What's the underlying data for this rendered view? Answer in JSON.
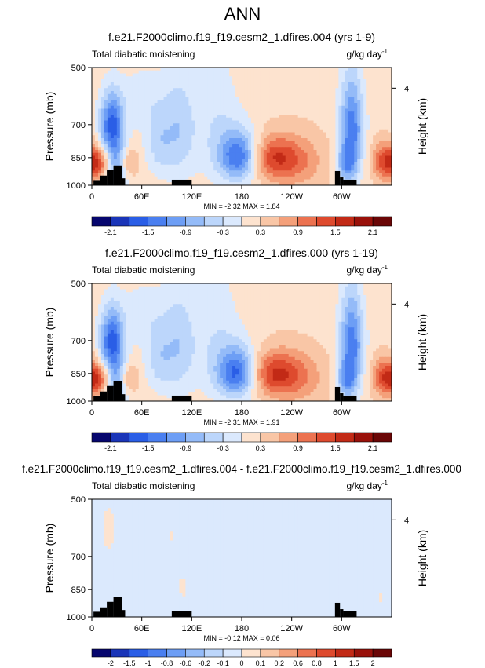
{
  "page_title": "ANN",
  "panels": [
    {
      "title": "f.e21.F2000climo.f19_f19.cesm2_1.dfires.004 (yrs 1-9)",
      "left_label": "Total diabatic moistening",
      "right_label": "g/kg day",
      "right_label_exp": "-1",
      "stats": "MIN = -2.32  MAX = 1.84",
      "colorbar_ticks": [
        "-2.1",
        "-1.5",
        "-0.9",
        "-0.3",
        "0.3",
        "0.9",
        "1.5",
        "2.1"
      ]
    },
    {
      "title": "f.e21.F2000climo.f19_f19.cesm2_1.dfires.000 (yrs 1-19)",
      "left_label": "Total diabatic moistening",
      "right_label": "g/kg day",
      "right_label_exp": "-1",
      "stats": "MIN = -2.31  MAX = 1.91",
      "colorbar_ticks": [
        "-2.1",
        "-1.5",
        "-0.9",
        "-0.3",
        "0.3",
        "0.9",
        "1.5",
        "2.1"
      ]
    },
    {
      "title": "f.e21.F2000climo.f19_f19.cesm2_1.dfires.004 - f.e21.F2000climo.f19_f19.cesm2_1.dfires.000",
      "left_label": "Total diabatic moistening",
      "right_label": "g/kg day",
      "right_label_exp": "-1",
      "stats": "MIN = -0.12  MAX = 0.06",
      "colorbar_ticks": [
        "-2",
        "-1.5",
        "-1",
        "-0.8",
        "-0.6",
        "-0.2",
        "-0.1",
        "0",
        "0.1",
        "0.2",
        "0.6",
        "0.8",
        "1",
        "1.5",
        "2"
      ]
    }
  ],
  "chart_data": [
    {
      "type": "heatmap",
      "title": "f.e21.F2000climo.f19_f19.cesm2_1.dfires.004 (yrs 1-9)",
      "xlabel": "",
      "ylabel": "Pressure (mb)",
      "y2label": "Height (km)",
      "x_ticks": [
        "0",
        "60E",
        "120E",
        "180",
        "120W",
        "60W"
      ],
      "x_tick_lon": [
        0,
        60,
        120,
        180,
        240,
        300
      ],
      "xlim": [
        0,
        360
      ],
      "y_ticks": [
        "500",
        "700",
        "850",
        "1000"
      ],
      "y_tick_values": [
        500,
        700,
        850,
        1000
      ],
      "ylim": [
        1000,
        500
      ],
      "y2_ticks": [
        "4"
      ],
      "y2_tick_values": [
        4
      ],
      "levels": [
        -2.1,
        -1.8,
        -1.5,
        -1.2,
        -0.9,
        -0.6,
        -0.3,
        0,
        0.3,
        0.6,
        0.9,
        1.2,
        1.5,
        1.8,
        2.1
      ],
      "colors": [
        "#06066e",
        "#1a35b8",
        "#2a5ee6",
        "#4a7ff0",
        "#6d9ef5",
        "#94bbf8",
        "#bcd6fb",
        "#dbe9fd",
        "#fde3cf",
        "#f9c6a6",
        "#f4a07a",
        "#ec7250",
        "#de4a2e",
        "#c22a16",
        "#99110a",
        "#6a0606"
      ],
      "min": -2.32,
      "max": 1.84,
      "features": [
        {
          "lon": 24,
          "p": 700,
          "amp": -1.8,
          "dlon": 10,
          "dp": 90
        },
        {
          "lon": 30,
          "p": 900,
          "amp": -1.2,
          "dlon": 12,
          "dp": 90
        },
        {
          "lon": 10,
          "p": 880,
          "amp": 1.2,
          "dlon": 10,
          "dp": 60
        },
        {
          "lon": 44,
          "p": 880,
          "amp": 0.9,
          "dlon": 8,
          "dp": 60
        },
        {
          "lon": 80,
          "p": 780,
          "amp": -0.6,
          "dlon": 12,
          "dp": 110
        },
        {
          "lon": 105,
          "p": 720,
          "amp": -0.7,
          "dlon": 14,
          "dp": 160
        },
        {
          "lon": 150,
          "p": 700,
          "amp": -0.45,
          "dlon": 20,
          "dp": 180
        },
        {
          "lon": 178,
          "p": 845,
          "amp": -1.9,
          "dlon": 17,
          "dp": 85
        },
        {
          "lon": 215,
          "p": 850,
          "amp": 1.1,
          "dlon": 26,
          "dp": 75
        },
        {
          "lon": 245,
          "p": 880,
          "amp": 0.5,
          "dlon": 28,
          "dp": 110
        },
        {
          "lon": 312,
          "p": 720,
          "amp": -1.6,
          "dlon": 10,
          "dp": 150
        },
        {
          "lon": 305,
          "p": 890,
          "amp": -0.9,
          "dlon": 8,
          "dp": 70
        },
        {
          "lon": 352,
          "p": 870,
          "amp": 1.1,
          "dlon": 11,
          "dp": 70
        },
        {
          "lon": 60,
          "p": 600,
          "amp": -0.35,
          "dlon": 20,
          "dp": 80
        }
      ],
      "base": 0.2,
      "terrain": [
        {
          "lon0": 2,
          "lon1": 10,
          "p_top": 970
        },
        {
          "lon0": 10,
          "lon1": 18,
          "p_top": 945
        },
        {
          "lon0": 18,
          "lon1": 26,
          "p_top": 915
        },
        {
          "lon0": 26,
          "lon1": 36,
          "p_top": 890
        },
        {
          "lon0": 36,
          "lon1": 40,
          "p_top": 960
        },
        {
          "lon0": 96,
          "lon1": 120,
          "p_top": 968
        },
        {
          "lon0": 292,
          "lon1": 298,
          "p_top": 920
        },
        {
          "lon0": 298,
          "lon1": 302,
          "p_top": 955
        },
        {
          "lon0": 302,
          "lon1": 318,
          "p_top": 968
        }
      ]
    },
    {
      "type": "heatmap",
      "title": "f.e21.F2000climo.f19_f19.cesm2_1.dfires.000 (yrs 1-19)",
      "xlabel": "",
      "ylabel": "Pressure (mb)",
      "y2label": "Height (km)",
      "x_ticks": [
        "0",
        "60E",
        "120E",
        "180",
        "120W",
        "60W"
      ],
      "x_tick_lon": [
        0,
        60,
        120,
        180,
        240,
        300
      ],
      "xlim": [
        0,
        360
      ],
      "y_ticks": [
        "500",
        "700",
        "850",
        "1000"
      ],
      "y_tick_values": [
        500,
        700,
        850,
        1000
      ],
      "ylim": [
        1000,
        500
      ],
      "y2_ticks": [
        "4"
      ],
      "y2_tick_values": [
        4
      ],
      "levels": [
        -2.1,
        -1.8,
        -1.5,
        -1.2,
        -0.9,
        -0.6,
        -0.3,
        0,
        0.3,
        0.6,
        0.9,
        1.2,
        1.5,
        1.8,
        2.1
      ],
      "colors": [
        "#06066e",
        "#1a35b8",
        "#2a5ee6",
        "#4a7ff0",
        "#6d9ef5",
        "#94bbf8",
        "#bcd6fb",
        "#dbe9fd",
        "#fde3cf",
        "#f9c6a6",
        "#f4a07a",
        "#ec7250",
        "#de4a2e",
        "#c22a16",
        "#99110a",
        "#6a0606"
      ],
      "min": -2.31,
      "max": 1.91,
      "features": [
        {
          "lon": 24,
          "p": 700,
          "amp": -1.8,
          "dlon": 10,
          "dp": 90
        },
        {
          "lon": 30,
          "p": 900,
          "amp": -1.2,
          "dlon": 12,
          "dp": 90
        },
        {
          "lon": 10,
          "p": 880,
          "amp": 1.2,
          "dlon": 10,
          "dp": 60
        },
        {
          "lon": 44,
          "p": 880,
          "amp": 0.9,
          "dlon": 8,
          "dp": 60
        },
        {
          "lon": 80,
          "p": 780,
          "amp": -0.6,
          "dlon": 12,
          "dp": 110
        },
        {
          "lon": 105,
          "p": 720,
          "amp": -0.7,
          "dlon": 14,
          "dp": 160
        },
        {
          "lon": 150,
          "p": 700,
          "amp": -0.45,
          "dlon": 20,
          "dp": 180
        },
        {
          "lon": 176,
          "p": 848,
          "amp": -1.95,
          "dlon": 17,
          "dp": 85
        },
        {
          "lon": 215,
          "p": 850,
          "amp": 1.15,
          "dlon": 26,
          "dp": 75
        },
        {
          "lon": 245,
          "p": 880,
          "amp": 0.5,
          "dlon": 28,
          "dp": 110
        },
        {
          "lon": 312,
          "p": 720,
          "amp": -1.6,
          "dlon": 10,
          "dp": 150
        },
        {
          "lon": 305,
          "p": 890,
          "amp": -0.9,
          "dlon": 8,
          "dp": 70
        },
        {
          "lon": 352,
          "p": 870,
          "amp": 1.15,
          "dlon": 11,
          "dp": 70
        },
        {
          "lon": 60,
          "p": 600,
          "amp": -0.35,
          "dlon": 20,
          "dp": 80
        }
      ],
      "base": 0.2,
      "terrain": [
        {
          "lon0": 2,
          "lon1": 10,
          "p_top": 970
        },
        {
          "lon0": 10,
          "lon1": 18,
          "p_top": 945
        },
        {
          "lon0": 18,
          "lon1": 26,
          "p_top": 915
        },
        {
          "lon0": 26,
          "lon1": 36,
          "p_top": 890
        },
        {
          "lon0": 36,
          "lon1": 40,
          "p_top": 960
        },
        {
          "lon0": 96,
          "lon1": 120,
          "p_top": 968
        },
        {
          "lon0": 292,
          "lon1": 298,
          "p_top": 920
        },
        {
          "lon0": 298,
          "lon1": 302,
          "p_top": 955
        },
        {
          "lon0": 302,
          "lon1": 318,
          "p_top": 968
        }
      ]
    },
    {
      "type": "heatmap",
      "title": "f.e21.F2000climo.f19_f19.cesm2_1.dfires.004 - f.e21.F2000climo.f19_f19.cesm2_1.dfires.000",
      "xlabel": "",
      "ylabel": "Pressure (mb)",
      "y2label": "Height (km)",
      "x_ticks": [
        "0",
        "60E",
        "120E",
        "180",
        "120W",
        "60W"
      ],
      "x_tick_lon": [
        0,
        60,
        120,
        180,
        240,
        300
      ],
      "xlim": [
        0,
        360
      ],
      "y_ticks": [
        "500",
        "700",
        "850",
        "1000"
      ],
      "y_tick_values": [
        500,
        700,
        850,
        1000
      ],
      "ylim": [
        1000,
        500
      ],
      "y2_ticks": [
        "4"
      ],
      "y2_tick_values": [
        4
      ],
      "levels": [
        -2,
        -1.5,
        -1,
        -0.8,
        -0.6,
        -0.2,
        -0.1,
        0,
        0.1,
        0.2,
        0.6,
        0.8,
        1,
        1.5,
        2
      ],
      "colors": [
        "#06066e",
        "#1a35b8",
        "#2a5ee6",
        "#4a7ff0",
        "#6d9ef5",
        "#94bbf8",
        "#bcd6fb",
        "#dbe9fd",
        "#fde3cf",
        "#f9c6a6",
        "#f4a07a",
        "#ec7250",
        "#de4a2e",
        "#c22a16",
        "#99110a",
        "#6a0606"
      ],
      "min": -0.12,
      "max": 0.06,
      "features": [
        {
          "lon": 20,
          "p": 600,
          "amp": 0.06,
          "dlon": 10,
          "dp": 120
        },
        {
          "lon": 55,
          "p": 760,
          "amp": 0.05,
          "dlon": 8,
          "dp": 200
        },
        {
          "lon": 95,
          "p": 620,
          "amp": 0.05,
          "dlon": 10,
          "dp": 140
        },
        {
          "lon": 110,
          "p": 850,
          "amp": 0.05,
          "dlon": 8,
          "dp": 90
        },
        {
          "lon": 150,
          "p": 600,
          "amp": 0.04,
          "dlon": 12,
          "dp": 110
        },
        {
          "lon": 185,
          "p": 880,
          "amp": 0.05,
          "dlon": 12,
          "dp": 100
        },
        {
          "lon": 255,
          "p": 800,
          "amp": 0.05,
          "dlon": 14,
          "dp": 160
        },
        {
          "lon": 330,
          "p": 640,
          "amp": 0.05,
          "dlon": 10,
          "dp": 140
        },
        {
          "lon": 348,
          "p": 900,
          "amp": 0.05,
          "dlon": 10,
          "dp": 80
        }
      ],
      "base": -0.05,
      "terrain": [
        {
          "lon0": 2,
          "lon1": 10,
          "p_top": 970
        },
        {
          "lon0": 10,
          "lon1": 18,
          "p_top": 945
        },
        {
          "lon0": 18,
          "lon1": 26,
          "p_top": 915
        },
        {
          "lon0": 26,
          "lon1": 36,
          "p_top": 890
        },
        {
          "lon0": 36,
          "lon1": 40,
          "p_top": 960
        },
        {
          "lon0": 96,
          "lon1": 120,
          "p_top": 968
        },
        {
          "lon0": 292,
          "lon1": 298,
          "p_top": 920
        },
        {
          "lon0": 298,
          "lon1": 302,
          "p_top": 955
        },
        {
          "lon0": 302,
          "lon1": 318,
          "p_top": 968
        }
      ]
    }
  ]
}
